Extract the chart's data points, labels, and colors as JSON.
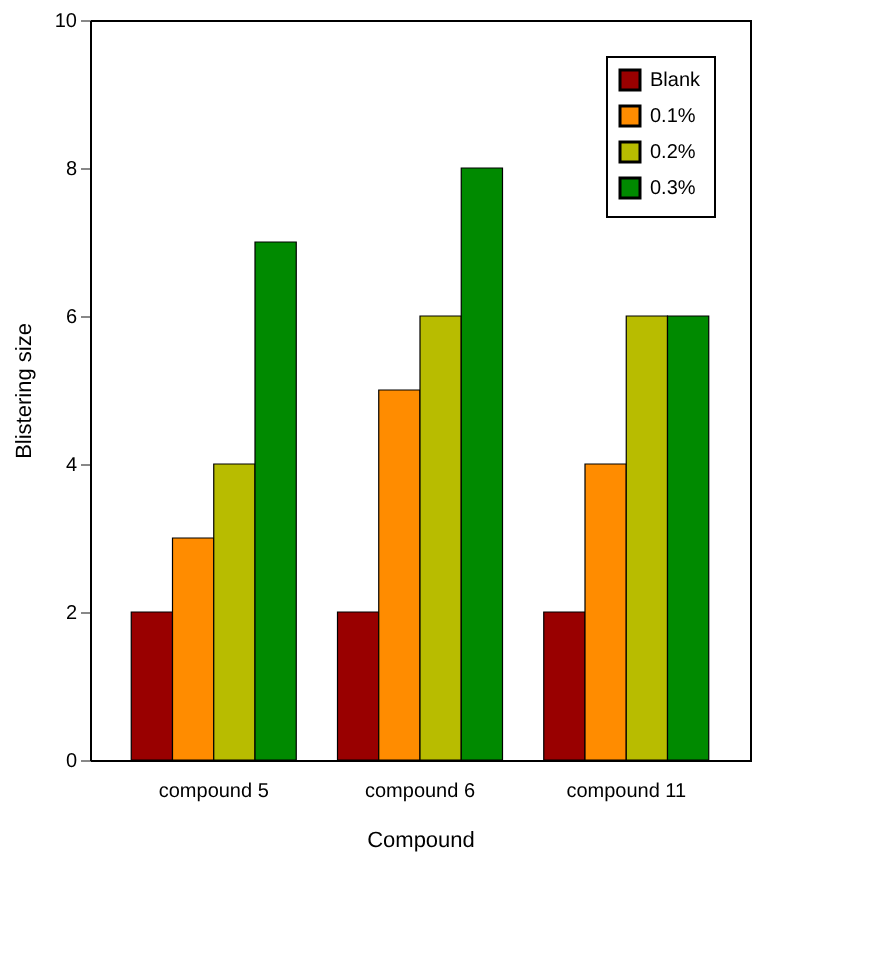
{
  "chart_data": {
    "type": "bar",
    "xlabel": "Compound",
    "ylabel": "Blistering size",
    "categories": [
      "compound 5",
      "compound 6",
      "compound 11"
    ],
    "series": [
      {
        "name": "Blank",
        "color": "#990000",
        "values": [
          2,
          2,
          2
        ]
      },
      {
        "name": "0.1%",
        "color": "#ff8c00",
        "values": [
          3,
          5,
          4
        ]
      },
      {
        "name": "0.2%",
        "color": "#b8bc00",
        "values": [
          4,
          6,
          6
        ]
      },
      {
        "name": "0.3%",
        "color": "#008a00",
        "values": [
          7,
          8,
          6
        ]
      }
    ],
    "ylim": [
      0,
      10
    ],
    "yticks": [
      0,
      2,
      4,
      6,
      8,
      10
    ],
    "grid": false,
    "legend": "top right"
  }
}
